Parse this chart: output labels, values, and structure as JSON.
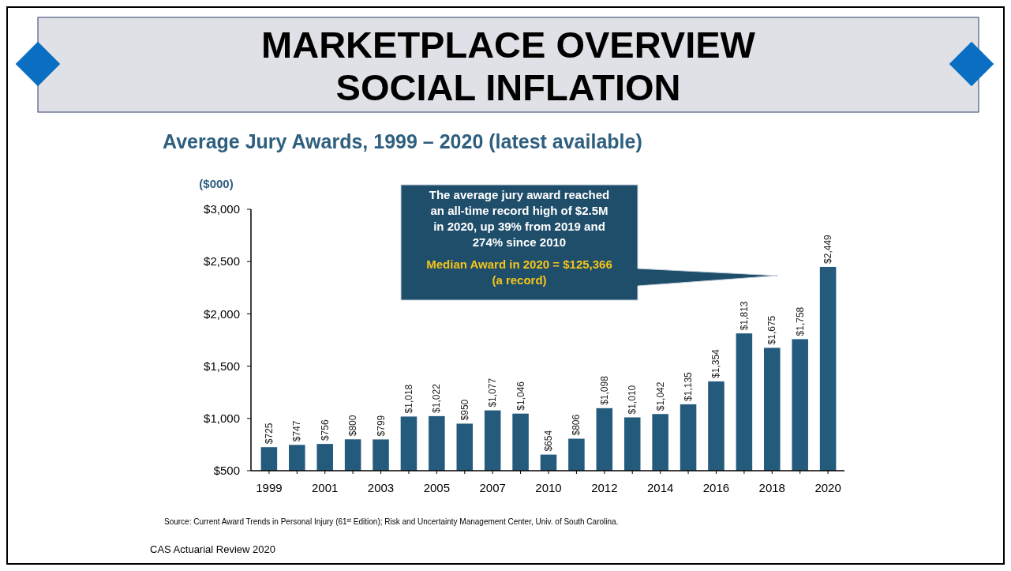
{
  "chart_data": {
    "type": "bar",
    "title": "MARKETPLACE OVERVIEW\nSOCIAL INFLATION",
    "subtitle": "Average Jury Awards, 1999 – 2020 (latest available)",
    "ylabel": "($000)",
    "categories": [
      "1999",
      null,
      "2001",
      null,
      "2003",
      null,
      "2005",
      null,
      "2007",
      null,
      "2010",
      null,
      "2012",
      null,
      "2014",
      null,
      "2016",
      null,
      "2018",
      null,
      "2020"
    ],
    "values": [
      725,
      747,
      756,
      800,
      799,
      1018,
      1022,
      950,
      1077,
      1046,
      654,
      806,
      1098,
      1010,
      1042,
      1135,
      1354,
      1813,
      1675,
      1758,
      2449
    ],
    "value_labels": [
      "$725",
      "$747",
      "$756",
      "$800",
      "$799",
      "$1,018",
      "$1,022",
      "$950",
      "$1,077",
      "$1,046",
      "$654",
      "$806",
      "$1,098",
      "$1,010",
      "$1,042",
      "$1,135",
      "$1,354",
      "$1,813",
      "$1,675",
      "$1,758",
      "$2,449"
    ],
    "color": "#245b7c",
    "ylim": [
      500,
      3000
    ],
    "yticks": [
      {
        "value": 500,
        "label": "$500"
      },
      {
        "value": 1000,
        "label": "$1,000"
      },
      {
        "value": 1500,
        "label": "$1,500"
      },
      {
        "value": 2000,
        "label": "$2,000"
      },
      {
        "value": 2500,
        "label": "$2,500"
      },
      {
        "value": 3000,
        "label": "$3,000"
      }
    ],
    "grid": false,
    "annotations": [
      "The average jury award reached an all-time record high of $2.5M in 2020, up 39% from 2019 and 274% since 2010",
      "Median Award in 2020 = $125,366 (a record)",
      "Source: Current Award Trends in Personal Injury (61$^{st}$ Edition); Risk and Uncertainty Management Center, Univ. of South Carolina.",
      "CAS Actuarial Review 2020"
    ]
  }
}
